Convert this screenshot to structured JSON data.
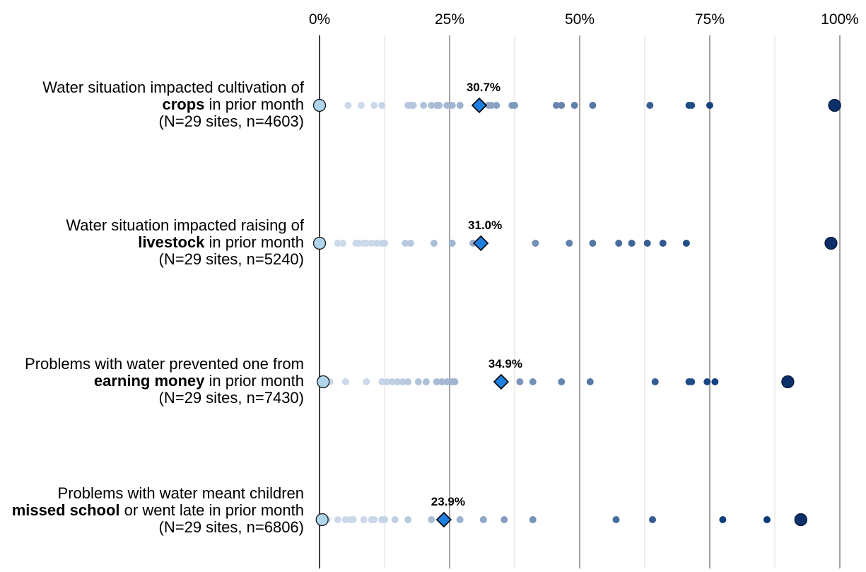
{
  "chart_data": {
    "type": "scatter",
    "xlim": [
      0,
      100
    ],
    "x_ticks": [
      {
        "value": 0,
        "label": "0%"
      },
      {
        "value": 25,
        "label": "25%"
      },
      {
        "value": 50,
        "label": "50%"
      },
      {
        "value": 75,
        "label": "75%"
      },
      {
        "value": 100,
        "label": "100%"
      }
    ],
    "minor_gridlines": [
      12.5,
      37.5,
      62.5,
      87.5
    ],
    "grid": true,
    "rows": [
      {
        "label_pre": "Water situation impacted cultivation of",
        "label_bold": "crops",
        "label_post": "in prior month",
        "label_n": "(N=29 sites, n=4603)",
        "mean": 30.7,
        "mean_label": "30.7%",
        "min": 0,
        "max": 99,
        "sites": [
          5.5,
          8,
          10.5,
          12,
          17,
          17.5,
          18,
          20,
          21.5,
          22.5,
          23,
          24.5,
          25.5,
          27,
          32.5,
          33,
          34,
          37,
          37.5,
          45.5,
          46.5,
          49,
          52.5,
          63.5,
          71,
          71.5,
          75
        ]
      },
      {
        "label_pre": "Water situation impacted raising of",
        "label_bold": "livestock",
        "label_post": "in prior month",
        "label_n": "(N=29 sites, n=5240)",
        "mean": 31.0,
        "mean_label": "31.0%",
        "min": 0,
        "max": 98.3,
        "sites": [
          3.5,
          4.5,
          7,
          7.5,
          8.5,
          9,
          10,
          11,
          12,
          12.5,
          16.5,
          17.5,
          22,
          25.5,
          29.5,
          41.5,
          48,
          52.5,
          57.5,
          60,
          63,
          66,
          70.5
        ]
      },
      {
        "label_pre": "Problems with water prevented one from",
        "label_bold": "earning money",
        "label_post": "in prior month",
        "label_n": "(N=29 sites, n=7430)",
        "mean": 34.9,
        "mean_label": "34.9%",
        "min": 0.7,
        "max": 90,
        "sites": [
          2,
          5,
          9,
          12,
          13,
          14,
          15,
          16,
          17,
          19,
          20.5,
          22.5,
          23.5,
          24.5,
          25.5,
          26,
          38.5,
          41,
          46.5,
          52,
          64.5,
          71,
          71.5,
          74.5,
          76
        ]
      },
      {
        "label_pre": "Problems with water meant children",
        "label_bold": "missed school",
        "label_post": "or went late in prior month",
        "label_n": "(N=29 sites, n=6806)",
        "mean": 23.9,
        "mean_label": "23.9%",
        "min": 0.5,
        "max": 92.5,
        "sites": [
          1.5,
          3.5,
          5,
          6,
          6.5,
          8.5,
          10,
          10.5,
          12,
          12.5,
          14.5,
          17,
          21.5,
          27,
          31.5,
          35.5,
          41,
          57,
          64,
          77.5,
          86
        ]
      }
    ]
  }
}
